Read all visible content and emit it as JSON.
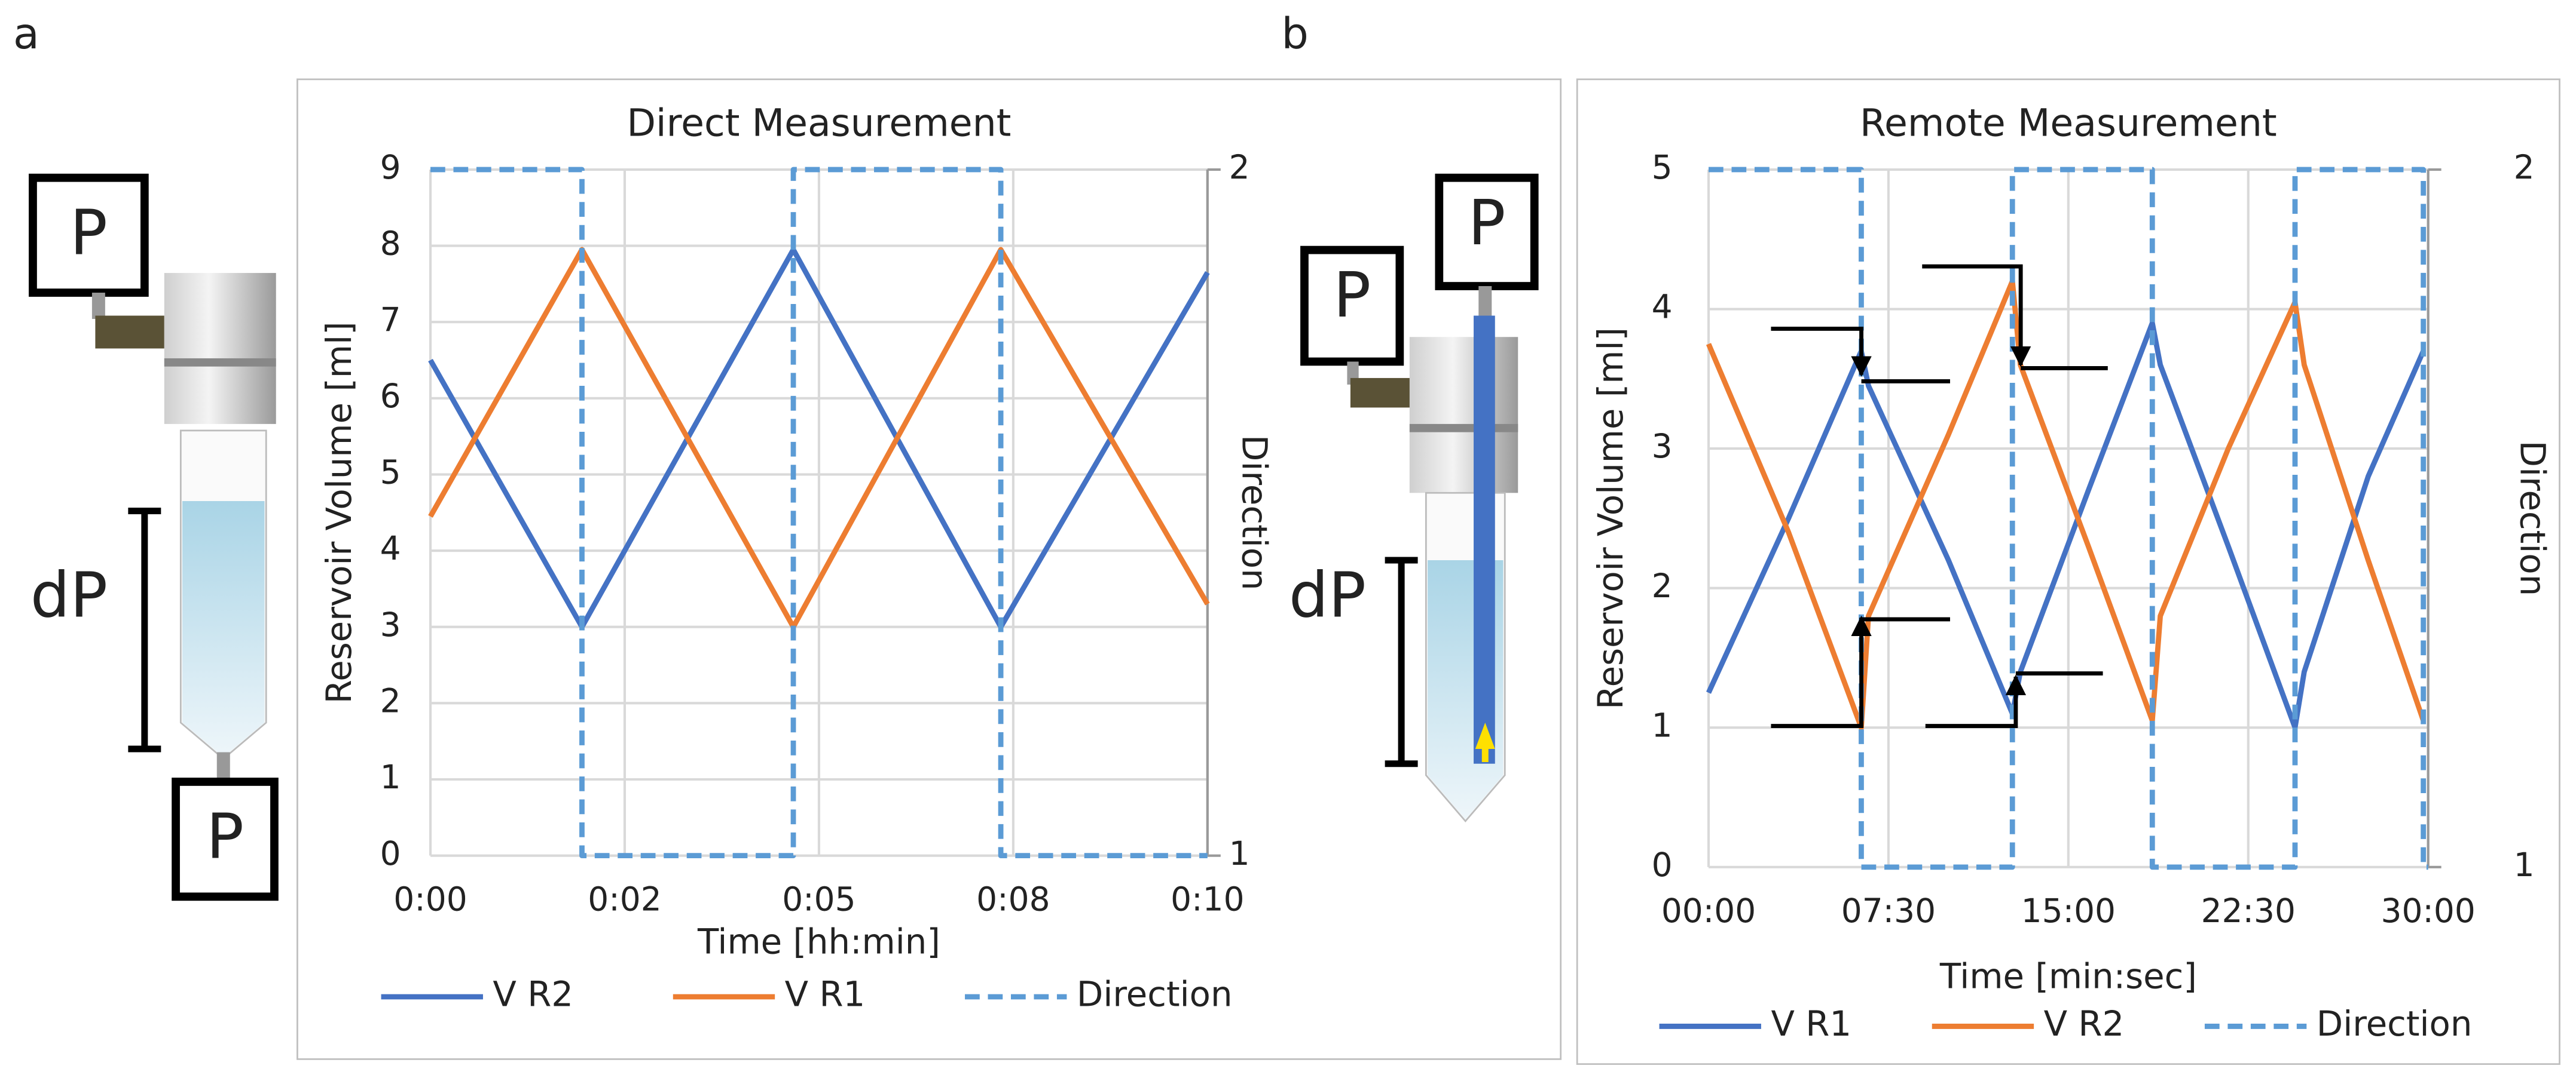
{
  "panels": [
    "a",
    "b"
  ],
  "diagrams": [
    {
      "labels": [
        "P",
        "P",
        "dP"
      ]
    },
    {
      "labels": [
        "P",
        "P",
        "dP"
      ]
    }
  ],
  "chart_data": [
    {
      "type": "line",
      "title": "Direct Measurement",
      "xlabel": "Time [hh:min]",
      "ylabel": "Reservoir Volume [ml]",
      "y2label": "Direction",
      "xlim": [
        0,
        10
      ],
      "xticks": [
        {
          "value": 0,
          "label": "0:00"
        },
        {
          "value": 2.5,
          "label": "0:02"
        },
        {
          "value": 5,
          "label": "0:05"
        },
        {
          "value": 7.5,
          "label": "0:08"
        },
        {
          "value": 10,
          "label": "0:10"
        }
      ],
      "ylim": [
        0,
        9
      ],
      "yticks": [
        0,
        1,
        2,
        3,
        4,
        5,
        6,
        7,
        8,
        9
      ],
      "y2lim": [
        1,
        2
      ],
      "y2ticks": [
        1,
        2
      ],
      "grid": true,
      "legend": "bottom",
      "series": [
        {
          "name": "V R2",
          "color": "#4472c4",
          "x": [
            0,
            1.95,
            4.67,
            7.34,
            10
          ],
          "values": [
            6.5,
            3,
            7.95,
            3,
            7.65
          ]
        },
        {
          "name": "V R1",
          "color": "#ed7d31",
          "x": [
            0,
            1.95,
            4.67,
            7.34,
            10
          ],
          "values": [
            4.45,
            7.95,
            3,
            7.95,
            3.3
          ]
        },
        {
          "name": "Direction",
          "color": "#5b9bd5",
          "dashed": true,
          "axis": "y2",
          "x": [
            0,
            1.95,
            1.95,
            4.67,
            4.67,
            7.34,
            7.34,
            10
          ],
          "values": [
            2,
            2,
            1,
            1,
            2,
            2,
            1,
            1
          ]
        }
      ]
    },
    {
      "type": "line",
      "title": "Remote Measurement",
      "xlabel": "Time [min:sec]",
      "ylabel": "Reservoir Volume [ml]",
      "y2label": "Direction",
      "xlim": [
        0,
        1800
      ],
      "xticks": [
        {
          "value": 0,
          "label": "00:00"
        },
        {
          "value": 450,
          "label": "07:30"
        },
        {
          "value": 900,
          "label": "15:00"
        },
        {
          "value": 1350,
          "label": "22:30"
        },
        {
          "value": 1800,
          "label": "30:00"
        }
      ],
      "ylim": [
        0,
        5
      ],
      "yticks": [
        0,
        1,
        2,
        3,
        4,
        5
      ],
      "y2lim": [
        1,
        2
      ],
      "y2ticks": [
        1,
        2
      ],
      "grid": true,
      "legend": "bottom",
      "series": [
        {
          "name": "V R1",
          "color": "#4472c4",
          "x": [
            0,
            200,
            382,
            400,
            600,
            760,
            780,
            950,
            1110,
            1130,
            1300,
            1467,
            1490,
            1650,
            1788
          ],
          "values": [
            1.25,
            2.5,
            3.7,
            3.45,
            2.2,
            1.1,
            1.4,
            2.7,
            3.9,
            3.6,
            2.3,
            1.0,
            1.4,
            2.8,
            3.7
          ]
        },
        {
          "name": "V R2",
          "color": "#ed7d31",
          "x": [
            0,
            200,
            382,
            400,
            600,
            760,
            780,
            950,
            1110,
            1130,
            1300,
            1467,
            1490,
            1650,
            1788
          ],
          "values": [
            3.75,
            2.4,
            1.0,
            1.8,
            3.1,
            4.2,
            3.6,
            2.3,
            1.05,
            1.8,
            3.0,
            4.05,
            3.6,
            2.2,
            1.05
          ]
        },
        {
          "name": "Direction",
          "color": "#5b9bd5",
          "dashed": true,
          "axis": "y2",
          "x": [
            0,
            382,
            382,
            760,
            760,
            1110,
            1110,
            1467,
            1467,
            1788,
            1788,
            1800
          ],
          "values": [
            2,
            2,
            1,
            1,
            2,
            2,
            1,
            1,
            2,
            2,
            1,
            1
          ]
        }
      ]
    }
  ]
}
